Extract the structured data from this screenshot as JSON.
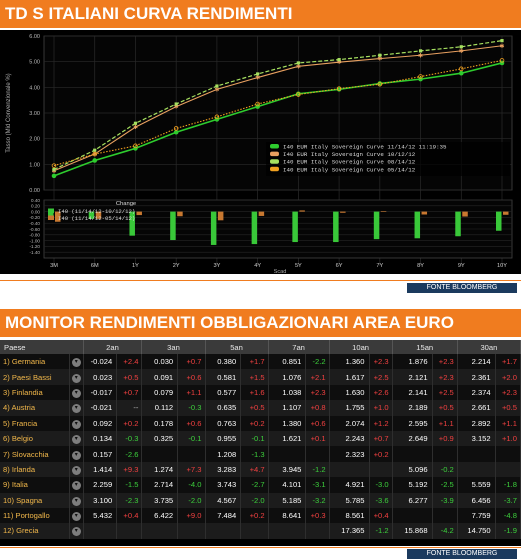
{
  "headline": "TD S ITALIANI CURVA RENDIMENTI",
  "section_title": "MONITOR RENDIMENTI OBBLIGAZIONARI AREA EURO",
  "source_label": "FONTE BLOOMBERG",
  "colors": {
    "banner": "#f07c1f",
    "series_current": "#2ecc2e",
    "series_1m": "#e8a060",
    "series_3m": "#a6e060",
    "series_6m": "#f0a020",
    "change_1m": "#39c839",
    "change_3m": "#c87830",
    "positive": "#f04040",
    "negative": "#3ccf3c"
  },
  "chart_data": {
    "type": "line",
    "ylabel": "Tasso (Mid Convenzionale %)",
    "ylim": [
      0,
      6
    ],
    "yticks": [
      "6.00",
      "5.00",
      "4.00",
      "3.00",
      "2.00",
      "1.00",
      "0.00"
    ],
    "categories": [
      "3M",
      "6M",
      "1Y",
      "2Y",
      "3Y",
      "4Y",
      "5Y",
      "6Y",
      "7Y",
      "8Y",
      "9Y",
      "10Y"
    ],
    "series": [
      {
        "name": "I40 EUR Italy Sovereign Curve 11/14/12 11:19:35",
        "values": [
          0.55,
          1.15,
          1.62,
          2.25,
          2.75,
          3.25,
          3.75,
          3.92,
          4.15,
          4.32,
          4.55,
          4.95
        ]
      },
      {
        "name": "I40 EUR Italy Sovereign Curve 10/12/12",
        "values": [
          0.75,
          1.4,
          2.45,
          3.25,
          3.92,
          4.38,
          4.82,
          4.98,
          5.12,
          5.25,
          5.42,
          5.62
        ]
      },
      {
        "name": "I40 EUR Italy Sovereign Curve 08/14/12",
        "values": [
          0.8,
          1.55,
          2.6,
          3.35,
          4.05,
          4.52,
          4.95,
          5.08,
          5.25,
          5.42,
          5.58,
          5.82
        ]
      },
      {
        "name": "I40 EUR Italy Sovereign Curve 05/14/12",
        "values": [
          0.95,
          1.4,
          1.72,
          2.4,
          2.85,
          3.35,
          3.72,
          3.95,
          4.12,
          4.42,
          4.72,
          5.05
        ]
      }
    ],
    "change_panel": {
      "title": "Change",
      "ylim": [
        -1.6,
        0.4
      ],
      "yticks": [
        "0.40",
        "0.20",
        "0.00",
        "-0.20",
        "-0.40",
        "-0.60",
        "-0.80",
        "-1.00",
        "-1.20",
        "-1.40"
      ],
      "xlabel": "Scad",
      "series": [
        {
          "name": "I40 (11/14/12-10/12/12)",
          "values": [
            -0.2,
            -0.25,
            -0.83,
            -0.98,
            -1.15,
            -1.12,
            -1.05,
            -1.05,
            -0.95,
            -0.92,
            -0.85,
            -0.66
          ]
        },
        {
          "name": "I40 (11/14/12-05/14/12)",
          "values": [
            -0.35,
            -0.25,
            -0.12,
            -0.16,
            -0.3,
            -0.15,
            0.04,
            -0.04,
            0.02,
            -0.1,
            -0.17,
            -0.11
          ]
        }
      ]
    }
  },
  "table": {
    "headers": [
      "Paese",
      "2an",
      "3an",
      "5an",
      "7an",
      "10an",
      "15an",
      "30an"
    ],
    "rows": [
      {
        "country": "1) Germania",
        "cells": [
          [
            "-0.024",
            "+2.4"
          ],
          [
            "0.030",
            "+0.7"
          ],
          [
            "0.380",
            "+1.7"
          ],
          [
            "0.851",
            "-2.2"
          ],
          [
            "1.360",
            "+2.3"
          ],
          [
            "1.876",
            "+2.3"
          ],
          [
            "2.214",
            "+1.7"
          ]
        ]
      },
      {
        "country": "2) Paesi Bassi",
        "cells": [
          [
            "0.023",
            "+0.5"
          ],
          [
            "0.091",
            "+0.6"
          ],
          [
            "0.581",
            "+1.5"
          ],
          [
            "1.076",
            "+2.1"
          ],
          [
            "1.617",
            "+2.5"
          ],
          [
            "2.121",
            "+2.3"
          ],
          [
            "2.361",
            "+2.0"
          ]
        ]
      },
      {
        "country": "3) Finlandia",
        "cells": [
          [
            "-0.017",
            "+0.7"
          ],
          [
            "0.079",
            "+1.1"
          ],
          [
            "0.577",
            "+1.6"
          ],
          [
            "1.038",
            "+2.3"
          ],
          [
            "1.630",
            "+2.6"
          ],
          [
            "2.141",
            "+2.5"
          ],
          [
            "2.374",
            "+2.3"
          ]
        ]
      },
      {
        "country": "4) Austria",
        "cells": [
          [
            "-0.021",
            "--"
          ],
          [
            "0.112",
            "-0.3"
          ],
          [
            "0.635",
            "+0.5"
          ],
          [
            "1.107",
            "+0.8"
          ],
          [
            "1.755",
            "+1.0"
          ],
          [
            "2.189",
            "+0.5"
          ],
          [
            "2.661",
            "+0.5"
          ]
        ]
      },
      {
        "country": "5) Francia",
        "cells": [
          [
            "0.092",
            "+0.2"
          ],
          [
            "0.178",
            "+0.6"
          ],
          [
            "0.763",
            "+0.2"
          ],
          [
            "1.380",
            "+0.6"
          ],
          [
            "2.074",
            "+1.2"
          ],
          [
            "2.595",
            "+1.1"
          ],
          [
            "2.892",
            "+1.1"
          ]
        ]
      },
      {
        "country": "6) Belgio",
        "cells": [
          [
            "0.134",
            "-0.3"
          ],
          [
            "0.325",
            "-0.1"
          ],
          [
            "0.955",
            "-0.1"
          ],
          [
            "1.621",
            "+0.1"
          ],
          [
            "2.243",
            "+0.7"
          ],
          [
            "2.649",
            "+0.9"
          ],
          [
            "3.152",
            "+1.0"
          ]
        ]
      },
      {
        "country": "7) Slovacchia",
        "cells": [
          [
            "0.157",
            "-2.6"
          ],
          [
            "",
            ""
          ],
          [
            "1.208",
            "-1.3"
          ],
          [
            "",
            ""
          ],
          [
            "2.323",
            "+0.2"
          ],
          [
            "",
            ""
          ],
          [
            "",
            ""
          ]
        ]
      },
      {
        "country": "8) Irlanda",
        "cells": [
          [
            "1.414",
            "+9.3"
          ],
          [
            "1.274",
            "+7.3"
          ],
          [
            "3.283",
            "+4.7"
          ],
          [
            "3.945",
            "-1.2"
          ],
          [
            "",
            ""
          ],
          [
            "5.096",
            "-0.2"
          ],
          [
            "",
            ""
          ]
        ]
      },
      {
        "country": "9) Italia",
        "cells": [
          [
            "2.259",
            "-1.5"
          ],
          [
            "2.714",
            "-4.0"
          ],
          [
            "3.743",
            "-2.7"
          ],
          [
            "4.101",
            "-3.1"
          ],
          [
            "4.921",
            "-3.0"
          ],
          [
            "5.192",
            "-2.5"
          ],
          [
            "5.559",
            "-1.8"
          ]
        ]
      },
      {
        "country": "10) Spagna",
        "cells": [
          [
            "3.100",
            "-2.3"
          ],
          [
            "3.735",
            "-2.0"
          ],
          [
            "4.567",
            "-2.0"
          ],
          [
            "5.185",
            "-3.2"
          ],
          [
            "5.785",
            "-3.6"
          ],
          [
            "6.277",
            "-3.9"
          ],
          [
            "6.456",
            "-3.7"
          ]
        ]
      },
      {
        "country": "11) Portogallo",
        "cells": [
          [
            "5.432",
            "+0.4"
          ],
          [
            "6.422",
            "+9.0"
          ],
          [
            "7.484",
            "+0.2"
          ],
          [
            "8.641",
            "+0.3"
          ],
          [
            "8.561",
            "+0.4"
          ],
          [
            "",
            ""
          ],
          [
            "7.759",
            "-4.8"
          ]
        ]
      },
      {
        "country": "12) Grecia",
        "cells": [
          [
            "",
            ""
          ],
          [
            "",
            ""
          ],
          [
            "",
            ""
          ],
          [
            "",
            ""
          ],
          [
            "17.365",
            "-1.2"
          ],
          [
            "15.868",
            "-4.2"
          ],
          [
            "14.750",
            "-1.9"
          ]
        ]
      }
    ]
  }
}
